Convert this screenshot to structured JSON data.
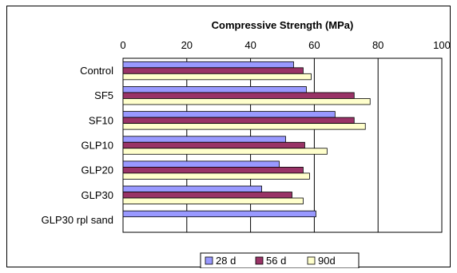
{
  "chart_data": {
    "type": "bar",
    "orientation": "horizontal",
    "title": "",
    "xlabel": "Compressive Strength (MPa)",
    "ylabel": "",
    "xlim": [
      0,
      100
    ],
    "xticks": [
      "0",
      "20",
      "40",
      "60",
      "80",
      "100"
    ],
    "x_axis_position": "top",
    "grid": true,
    "legend_position": "bottom",
    "categories": [
      "Control",
      "SF5",
      "SF10",
      "GLP10",
      "GLP20",
      "GLP30",
      "GLP30 rpl sand"
    ],
    "series": [
      {
        "name": "28 d",
        "color": "#9999ff",
        "values": [
          53.5,
          57.5,
          66.5,
          51,
          49,
          43.5,
          60.5
        ]
      },
      {
        "name": "56 d",
        "color": "#993366",
        "values": [
          56.5,
          72.5,
          72.5,
          57,
          56.5,
          53,
          null
        ]
      },
      {
        "name": "90d",
        "color": "#ffffcc",
        "values": [
          59,
          77.5,
          76,
          64,
          58.5,
          56.5,
          null
        ]
      }
    ]
  }
}
